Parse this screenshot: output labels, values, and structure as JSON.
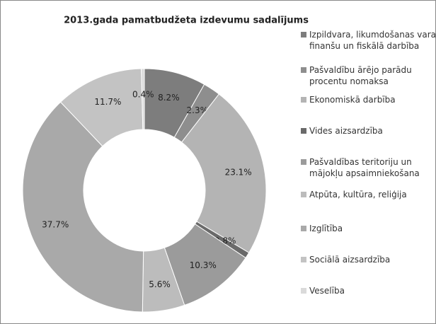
{
  "chart_data": {
    "type": "donut",
    "title": "2013.gada pamatbudžeta izdevumu sadalījums",
    "categories": [
      "Izpildvara, likumdošanas vara, finanšu un fiskālā darbība",
      "Pašvaldību ārējo parādu procentu nomaksa",
      "Ekonomiskā darbība",
      "Vides aizsardzība",
      "Pašvaldības teritoriju un mājokļu apsaimniekošana",
      "Atpūta, kultūra, reliģija",
      "Izglītība",
      "Sociālā aizsardzība",
      "Veselība"
    ],
    "values": [
      8.2,
      2.3,
      23.1,
      0.8,
      10.3,
      5.6,
      37.7,
      11.7,
      0.4
    ],
    "value_labels": [
      "8.2%",
      "2.3%",
      "23.1%",
      "0.8%",
      "10.3%",
      "5.6%",
      "37.7%",
      "11.7%",
      "0.4%"
    ],
    "colors": [
      "#7d7d7d",
      "#8e8e8e",
      "#b4b4b4",
      "#6a6a6a",
      "#9b9b9b",
      "#bcbcbc",
      "#a9a9a9",
      "#c3c3c3",
      "#dadada"
    ],
    "legend": "right"
  }
}
